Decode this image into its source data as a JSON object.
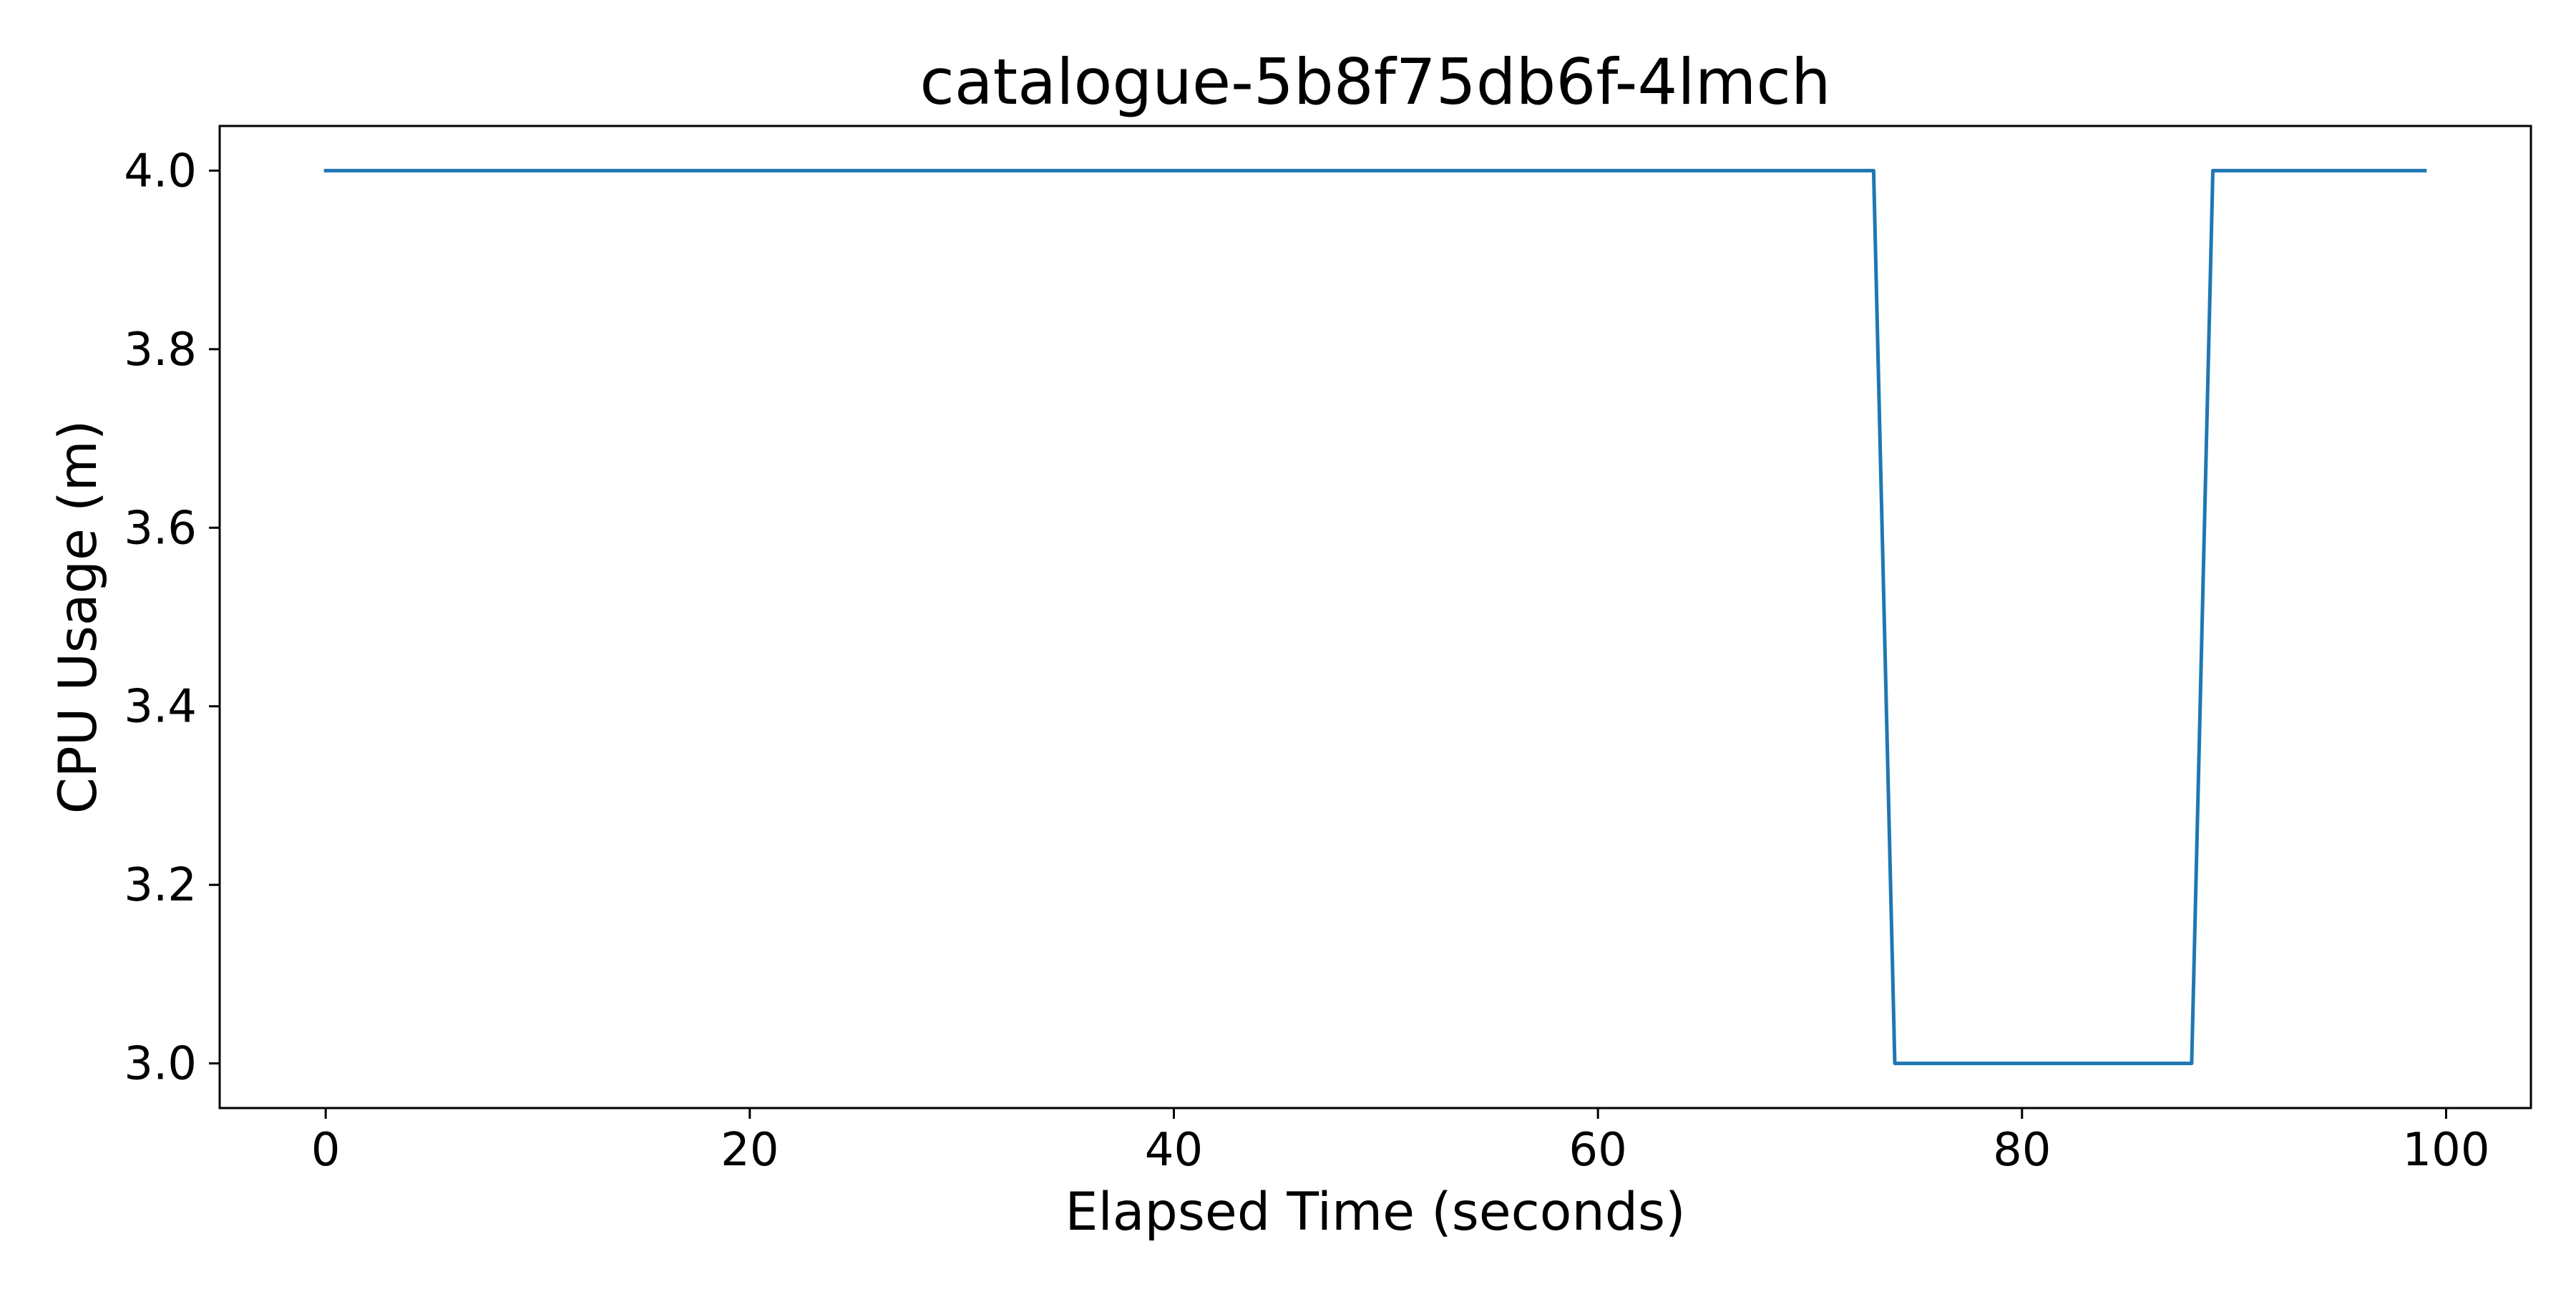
{
  "chart_data": {
    "type": "line",
    "title": "catalogue-5b8f75db6f-4lmch",
    "xlabel": "Elapsed Time (seconds)",
    "ylabel": "CPU Usage (m)",
    "xlim": [
      -5,
      104
    ],
    "ylim": [
      2.95,
      4.05
    ],
    "x_ticks": [
      0,
      20,
      40,
      60,
      80,
      100
    ],
    "y_ticks": [
      3.0,
      3.2,
      3.4,
      3.6,
      3.8,
      4.0
    ],
    "x_tick_labels": [
      "0",
      "20",
      "40",
      "60",
      "80",
      "100"
    ],
    "y_tick_labels": [
      "3.0",
      "3.2",
      "3.4",
      "3.6",
      "3.8",
      "4.0"
    ],
    "grid": false,
    "legend": "none",
    "series": [
      {
        "color": "#1f77b4",
        "x": [
          0,
          73,
          74,
          88,
          89,
          99
        ],
        "y": [
          4.0,
          4.0,
          3.0,
          3.0,
          4.0,
          4.0
        ]
      }
    ]
  }
}
